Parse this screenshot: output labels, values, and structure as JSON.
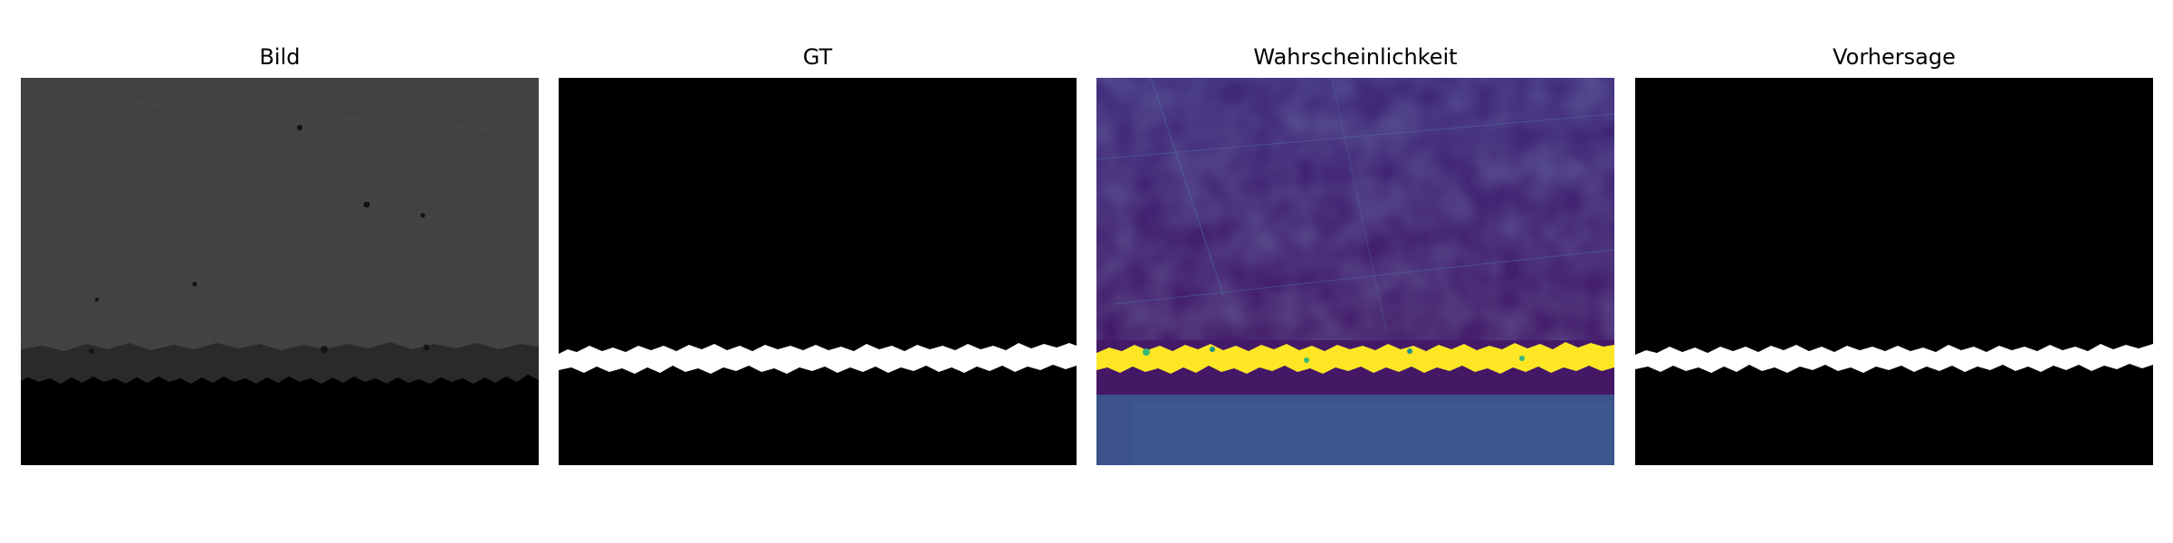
{
  "figure": {
    "panels": [
      {
        "title": "Bild"
      },
      {
        "title": "GT"
      },
      {
        "title": "Wahrscheinlichkeit"
      },
      {
        "title": "Vorhersage"
      }
    ]
  },
  "colors": {
    "background": "#ffffff",
    "mask_background": "#000000",
    "mask_foreground": "#ffffff",
    "micrograph_gray": "#3a3a3a",
    "prob_low": "#440154",
    "prob_mid": "#3b528b",
    "prob_high": "#fde725"
  }
}
